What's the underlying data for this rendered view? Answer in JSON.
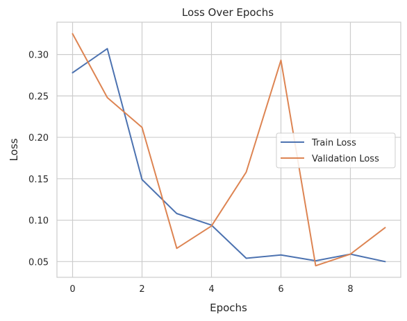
{
  "chart_data": {
    "type": "line",
    "title": "Loss Over Epochs",
    "xlabel": "Epochs",
    "ylabel": "Loss",
    "x": [
      0,
      1,
      2,
      3,
      4,
      5,
      6,
      7,
      8,
      9
    ],
    "xlim": [
      -0.45,
      9.45
    ],
    "ylim": [
      0.031,
      0.339
    ],
    "xticks": [
      0,
      2,
      4,
      6,
      8
    ],
    "xtick_labels": [
      "0",
      "2",
      "4",
      "6",
      "8"
    ],
    "yticks": [
      0.05,
      0.1,
      0.15,
      0.2,
      0.25,
      0.3
    ],
    "ytick_labels": [
      "0.05",
      "0.10",
      "0.15",
      "0.20",
      "0.25",
      "0.30"
    ],
    "grid": true,
    "legend_position": "center-right",
    "series": [
      {
        "name": "Train Loss",
        "color": "#4c72b0",
        "values": [
          0.278,
          0.307,
          0.149,
          0.108,
          0.094,
          0.054,
          0.058,
          0.051,
          0.059,
          0.05
        ]
      },
      {
        "name": "Validation Loss",
        "color": "#dd8452",
        "values": [
          0.325,
          0.248,
          0.212,
          0.066,
          0.093,
          0.158,
          0.293,
          0.045,
          0.059,
          0.091
        ]
      }
    ]
  }
}
